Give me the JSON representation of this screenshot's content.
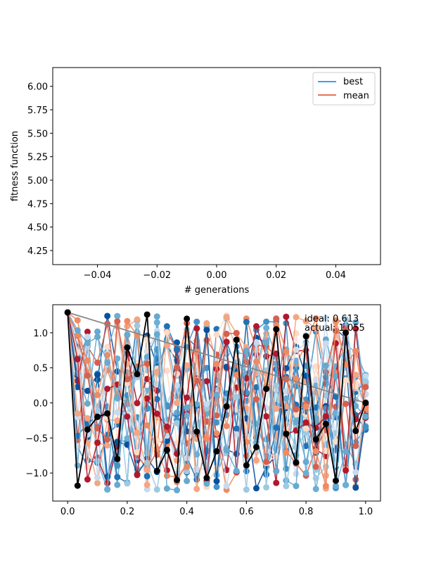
{
  "chart_data": [
    {
      "type": "line",
      "title": "",
      "xlabel": "# generations",
      "ylabel": "fitness function",
      "xlim": [
        -0.055,
        0.055
      ],
      "ylim": [
        4.1,
        6.2
      ],
      "xticks": [
        "−0.04",
        "−0.02",
        "0.00",
        "0.02",
        "0.04"
      ],
      "xtick_values": [
        -0.04,
        -0.02,
        0,
        0.02,
        0.04
      ],
      "yticks": [
        "4.25",
        "4.50",
        "4.75",
        "5.00",
        "5.25",
        "5.50",
        "5.75",
        "6.00"
      ],
      "ytick_values": [
        4.25,
        4.5,
        4.75,
        5.0,
        5.25,
        5.5,
        5.75,
        6.0
      ],
      "legend_position": "top-right",
      "series": [
        {
          "name": "best",
          "color": "#1f8ff0",
          "x": [],
          "values": []
        },
        {
          "name": "mean",
          "color": "#e8603a",
          "x": [],
          "values": []
        }
      ]
    },
    {
      "type": "line",
      "title": "",
      "xlabel": "",
      "ylabel": "",
      "xlim": [
        -0.05,
        1.05
      ],
      "ylim": [
        -1.4,
        1.4
      ],
      "xticks": [
        "0.0",
        "0.2",
        "0.4",
        "0.6",
        "0.8",
        "1.0"
      ],
      "xtick_values": [
        0,
        0.2,
        0.4,
        0.6,
        0.8,
        1.0
      ],
      "yticks": [
        "−1.0",
        "−0.5",
        "0.0",
        "0.5",
        "1.0"
      ],
      "ytick_values": [
        -1.0,
        -0.5,
        0,
        0.5,
        1.0
      ],
      "annotations": [
        "ideal: 0.613",
        "actual: 1.055"
      ],
      "highlight_series": {
        "color": "#000000",
        "x": [
          0.0,
          0.0333,
          0.0667,
          0.1,
          0.1333,
          0.1667,
          0.2,
          0.2333,
          0.2667,
          0.3,
          0.3333,
          0.3667,
          0.4,
          0.4333,
          0.4667,
          0.5,
          0.5333,
          0.5667,
          0.6,
          0.6333,
          0.6667,
          0.7,
          0.7333,
          0.7667,
          0.8,
          0.8333,
          0.8667,
          0.9,
          0.9333,
          0.9667,
          1.0
        ],
        "values": [
          1.29,
          -1.18,
          -0.38,
          -0.2,
          -0.15,
          -0.8,
          0.79,
          0.41,
          1.26,
          -0.97,
          -0.67,
          -1.1,
          1.2,
          -0.41,
          -1.07,
          -0.69,
          -0.05,
          0.9,
          -0.89,
          -0.63,
          0.2,
          1.05,
          -0.44,
          -0.85,
          0.95,
          -0.52,
          -0.3,
          -1.11,
          1.0,
          -0.4,
          0.0
        ]
      },
      "trend_line": {
        "color": "#888888",
        "x": [
          0.0,
          1.0
        ],
        "values": [
          1.29,
          0.0
        ]
      },
      "background_series_colors": [
        "#08519c",
        "#2171b5",
        "#4292c6",
        "#6baed6",
        "#9ecae1",
        "#c6dbef",
        "#fddbc7",
        "#f4a582",
        "#d6604d",
        "#b2182b",
        "#ef8a62",
        "#67a9cf"
      ]
    }
  ]
}
